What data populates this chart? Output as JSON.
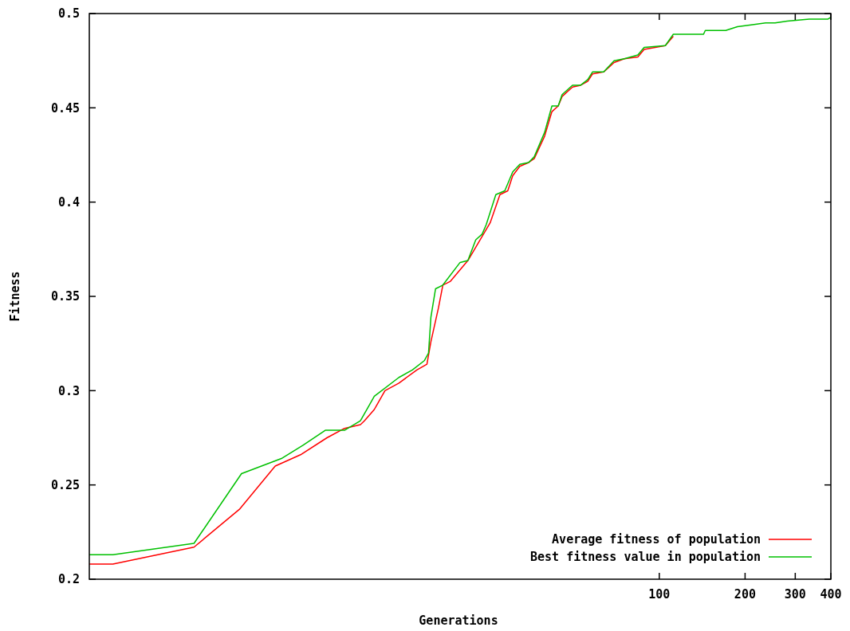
{
  "chart_data": {
    "type": "line",
    "xlabel": "Generations",
    "ylabel": "Fitness",
    "log": "x",
    "xlim": [
      1,
      400
    ],
    "xticks": [
      100,
      200,
      300,
      400
    ],
    "ylim": [
      0.2,
      0.5
    ],
    "yticks": [
      0.2,
      0.25,
      0.3,
      0.35,
      0.4,
      0.45,
      0.5
    ],
    "grid": false,
    "legend": "bottom right",
    "line_style": "solid",
    "series": [
      {
        "name": "Average fitness of population",
        "color": "#ff0000",
        "x": [
          1,
          1.21,
          2.33,
          3.36,
          4.49,
          5.51,
          6.82,
          7.86,
          8.94,
          9.23,
          10,
          10.9,
          12.2,
          14.1,
          15.3,
          15.8,
          16.8,
          17.4,
          18.5,
          21.3,
          25.5,
          27.6,
          29.4,
          30.6,
          32.4,
          34.8,
          36.4,
          39.6,
          42,
          44.2,
          45.6,
          49.6,
          53,
          56.1,
          58.3,
          63.8,
          69.4,
          75.4,
          84.1,
          88.5,
          105,
          112
        ],
        "values": [
          0.208,
          0.208,
          0.217,
          0.237,
          0.26,
          0.266,
          0.275,
          0.28,
          0.282,
          0.284,
          0.29,
          0.3,
          0.304,
          0.311,
          0.314,
          0.326,
          0.344,
          0.356,
          0.358,
          0.369,
          0.389,
          0.404,
          0.406,
          0.414,
          0.419,
          0.421,
          0.423,
          0.435,
          0.448,
          0.451,
          0.456,
          0.461,
          0.462,
          0.464,
          0.468,
          0.469,
          0.474,
          0.476,
          0.477,
          0.481,
          0.483,
          0.488
        ]
      },
      {
        "name": "Best fitness value in population",
        "color": "#00c000",
        "x": [
          1,
          1.21,
          2.33,
          3.42,
          4.72,
          5.62,
          6.73,
          7.86,
          8.94,
          10,
          12.2,
          13.6,
          15,
          15.5,
          15.8,
          16.4,
          17.4,
          20,
          21.3,
          22.7,
          23.9,
          24.7,
          26.7,
          28.7,
          30.6,
          32.4,
          34.8,
          36.4,
          39.6,
          42,
          44.2,
          45.6,
          49.6,
          53,
          56.1,
          58.3,
          63.8,
          69.4,
          75.4,
          84.1,
          88.5,
          105,
          112,
          143,
          145,
          171,
          188,
          210,
          236,
          255,
          281,
          336,
          390,
          400
        ],
        "values": [
          0.213,
          0.213,
          0.219,
          0.256,
          0.264,
          0.271,
          0.279,
          0.279,
          0.284,
          0.297,
          0.307,
          0.311,
          0.316,
          0.32,
          0.339,
          0.354,
          0.356,
          0.368,
          0.369,
          0.38,
          0.383,
          0.388,
          0.404,
          0.406,
          0.416,
          0.42,
          0.421,
          0.424,
          0.437,
          0.451,
          0.451,
          0.457,
          0.462,
          0.462,
          0.465,
          0.469,
          0.469,
          0.475,
          0.476,
          0.478,
          0.482,
          0.483,
          0.489,
          0.489,
          0.491,
          0.491,
          0.493,
          0.494,
          0.495,
          0.495,
          0.496,
          0.497,
          0.497,
          0.498
        ]
      }
    ]
  }
}
